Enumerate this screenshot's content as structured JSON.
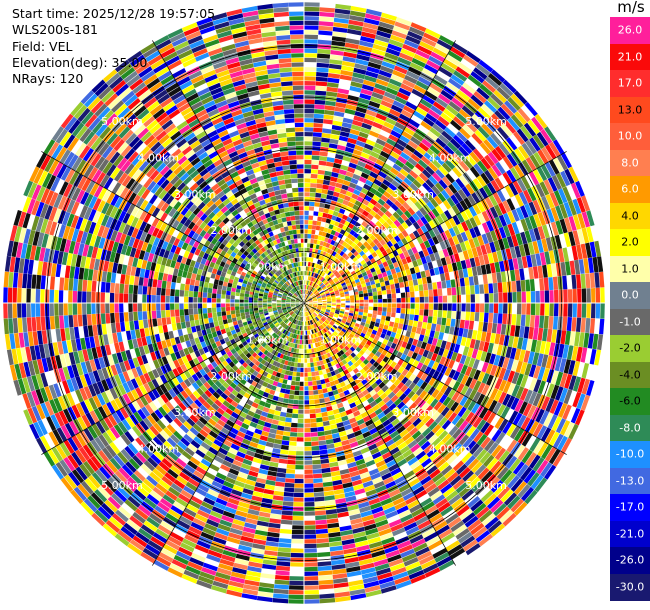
{
  "info": {
    "start_time": "Start time: 2025/12/28 19:57:05",
    "instrument": "WLS200s-181",
    "field": "Field: VEL",
    "elevation": "Elevation(deg): 35.00",
    "nrays": "NRays: 120"
  },
  "colorbar": {
    "unit": "m/s",
    "levels": [
      {
        "label": "26.0",
        "color": "#ff1f9b"
      },
      {
        "label": "21.0",
        "color": "#fa0a0a"
      },
      {
        "label": "17.0",
        "color": "#ff2d2d"
      },
      {
        "label": "13.0",
        "color": "#ff4a1e"
      },
      {
        "label": "10.0",
        "color": "#ff5e3a"
      },
      {
        "label": "8.0",
        "color": "#ff7f50"
      },
      {
        "label": "6.0",
        "color": "#ff9a00"
      },
      {
        "label": "4.0",
        "color": "#ffd700"
      },
      {
        "label": "2.0",
        "color": "#ffff00"
      },
      {
        "label": "1.0",
        "color": "#ffffaa"
      },
      {
        "label": "0.0",
        "color": "#708090"
      },
      {
        "label": "-1.0",
        "color": "#696969"
      },
      {
        "label": "-2.0",
        "color": "#9acd32"
      },
      {
        "label": "-4.0",
        "color": "#6b8e23"
      },
      {
        "label": "-6.0",
        "color": "#228b22"
      },
      {
        "label": "-8.0",
        "color": "#2e8b57"
      },
      {
        "label": "-10.0",
        "color": "#1e90ff"
      },
      {
        "label": "-13.0",
        "color": "#4169e1"
      },
      {
        "label": "-17.0",
        "color": "#0000ff"
      },
      {
        "label": "-21.0",
        "color": "#0000cd"
      },
      {
        "label": "-26.0",
        "color": "#00008b"
      },
      {
        "label": "-30.0",
        "color": "#191970"
      }
    ]
  },
  "chart_data": {
    "type": "heatmap",
    "projection": "ppi",
    "field": "VEL",
    "units": "m/s",
    "rays": 120,
    "vmin": -30.0,
    "vmax": 30.0,
    "range_rings_km": [
      1,
      2,
      3,
      4,
      5
    ],
    "range_labels": [
      "1.00km",
      "2.00km",
      "3.00km",
      "4.00km",
      "5.00km"
    ],
    "max_range_km": 5.5
  }
}
